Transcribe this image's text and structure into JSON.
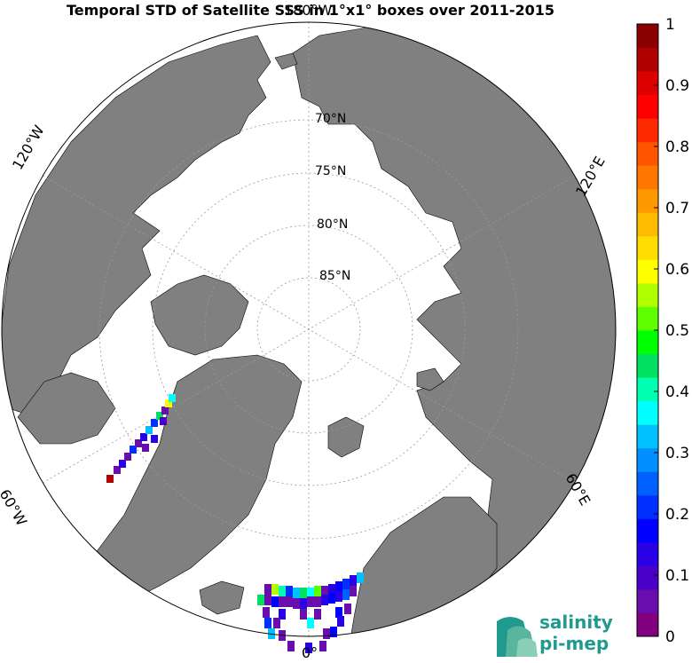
{
  "title": "Temporal STD of Satellite SSS in 1°x1° boxes over 2011-2015",
  "longitude_labels": {
    "top": "180°W",
    "bottom": "0°",
    "left_upper": "120°W",
    "left_lower": "60°W",
    "right_upper": "120°E",
    "right_lower": "60°E"
  },
  "latitude_labels": [
    "70°N",
    "75°N",
    "80°N",
    "85°N"
  ],
  "map": {
    "projection": "north polar stereographic",
    "land_color": "#808080",
    "ocean_color": "#ffffff"
  },
  "colorbar": {
    "ticks": [
      "0",
      "0.1",
      "0.2",
      "0.3",
      "0.4",
      "0.5",
      "0.6",
      "0.7",
      "0.8",
      "0.9",
      "1"
    ],
    "range": [
      0,
      1
    ],
    "colors": [
      "#800080",
      "#6a0dad",
      "#4b00c8",
      "#2a00e6",
      "#0000ff",
      "#0030ff",
      "#0060ff",
      "#0090ff",
      "#00c0ff",
      "#00ffff",
      "#00ffb0",
      "#00e060",
      "#00ff00",
      "#60ff00",
      "#b0ff00",
      "#ffff00",
      "#ffdd00",
      "#ffbb00",
      "#ff9900",
      "#ff7700",
      "#ff5500",
      "#ff2a00",
      "#ff0000",
      "#dd0000",
      "#b00000",
      "#8b0000"
    ]
  },
  "logo": {
    "line1": "salinity",
    "line2": "pi-mep",
    "colors": [
      "#1f9a8c",
      "#5ab5a0",
      "#8ccfb8"
    ]
  }
}
